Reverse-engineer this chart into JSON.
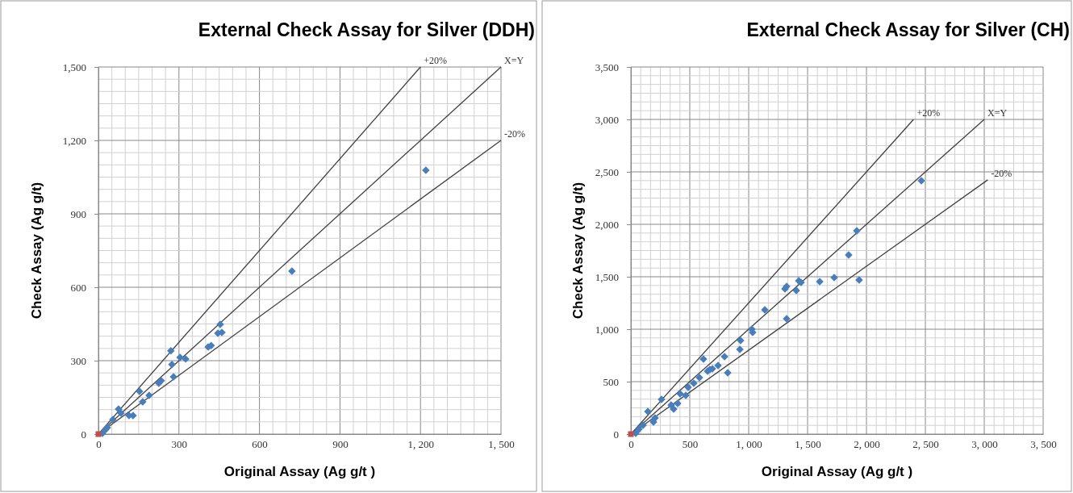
{
  "chart_data": [
    {
      "type": "scatter",
      "title": "External Check Assay for Silver (DDH)",
      "xlabel": "Original Assay (Ag g/t )",
      "ylabel": "Check Assay (Ag g/t)",
      "xlim": [
        0,
        1500
      ],
      "ylim": [
        0,
        1500
      ],
      "xticks": [
        0,
        300,
        600,
        900,
        {
          "value": 1200,
          "label": "1, 200"
        },
        {
          "value": 1500,
          "label": "1, 500"
        }
      ],
      "yticks": [
        0,
        300,
        600,
        900,
        {
          "value": 1200,
          "label": "1,200"
        },
        {
          "value": 1500,
          "label": "1,500"
        }
      ],
      "grid": true,
      "series": [
        {
          "type": "line",
          "name": "+20%",
          "color": "#404040",
          "x": [
            0,
            1200
          ],
          "values": [
            0,
            1500
          ]
        },
        {
          "type": "line",
          "name": "X=Y",
          "color": "#404040",
          "x": [
            0,
            1500
          ],
          "values": [
            0,
            1500
          ]
        },
        {
          "type": "line",
          "name": "-20%",
          "color": "#404040",
          "x": [
            0,
            1500
          ],
          "values": [
            0,
            1200
          ]
        },
        {
          "color": "#4a7ebb",
          "marker": "diamond",
          "x": [
            1220,
            721,
            454,
            460,
            445,
            409,
            420,
            270,
            304,
            325,
            274,
            280,
            234,
            225,
            153,
            75,
            129,
            114,
            165,
            54,
            33,
            24,
            15,
            84,
            189
          ],
          "values": [
            1078,
            666,
            448,
            415,
            412,
            356,
            362,
            340,
            313,
            307,
            284,
            234,
            218,
            208,
            175,
            102,
            76,
            76,
            132,
            59,
            26,
            16,
            3,
            86,
            158
          ]
        },
        {
          "color": "#c0504d",
          "marker": "square",
          "x": [
            0
          ],
          "values": [
            0
          ]
        }
      ]
    },
    {
      "type": "scatter",
      "title": "External Check Assay for Silver (CH)",
      "xlabel": "Original Assay (Ag g/t )",
      "ylabel": "Check Assay (Ag g/t)",
      "xlim": [
        0,
        3500
      ],
      "ylim": [
        0,
        3500
      ],
      "xticks": [
        0,
        500,
        {
          "value": 1000,
          "label": "1, 000"
        },
        {
          "value": 1500,
          "label": "1, 500"
        },
        {
          "value": 2000,
          "label": "2, 000"
        },
        {
          "value": 2500,
          "label": "2, 500"
        },
        {
          "value": 3000,
          "label": "3, 000"
        },
        {
          "value": 3500,
          "label": "3, 500"
        }
      ],
      "yticks": [
        0,
        500,
        {
          "value": 1000,
          "label": "1,000"
        },
        {
          "value": 1500,
          "label": "1,500"
        },
        {
          "value": 2000,
          "label": "2,000"
        },
        {
          "value": 2500,
          "label": "2,500"
        },
        {
          "value": 3000,
          "label": "3,000"
        },
        {
          "value": 3500,
          "label": "3,500"
        }
      ],
      "grid": true,
      "series": [
        {
          "type": "line",
          "name": "+20%",
          "color": "#404040",
          "x": [
            0,
            2400
          ],
          "values": [
            0,
            3000
          ]
        },
        {
          "type": "line",
          "name": "X=Y",
          "color": "#404040",
          "x": [
            0,
            3000
          ],
          "values": [
            0,
            3000
          ]
        },
        {
          "type": "line",
          "name": "-20%",
          "color": "#404040",
          "x": [
            0,
            3030
          ],
          "values": [
            0,
            2424
          ]
        },
        {
          "color": "#4a7ebb",
          "marker": "diamond",
          "x": [
            2466,
            1918,
            1849,
            1938,
            1726,
            1603,
            1445,
            1425,
            1404,
            1308,
            1322,
            1137,
            1322,
            1027,
            1034,
            931,
            925,
            616,
            795,
            822,
            740,
            692,
            651,
            582,
            534,
            486,
            418,
            342,
            260,
            363,
            144,
            192,
            103,
            68,
            41,
            205,
            397,
            466,
            671
          ],
          "values": [
            2415,
            1938,
            1708,
            1469,
            1492,
            1454,
            1446,
            1462,
            1369,
            1385,
            1408,
            1185,
            1100,
            1000,
            969,
            892,
            808,
            715,
            738,
            585,
            654,
            623,
            600,
            538,
            485,
            446,
            385,
            277,
            331,
            238,
            215,
            115,
            85,
            46,
            8,
            154,
            292,
            369,
            615
          ]
        },
        {
          "color": "#c0504d",
          "marker": "square",
          "x": [
            0
          ],
          "values": [
            0
          ]
        }
      ]
    }
  ]
}
